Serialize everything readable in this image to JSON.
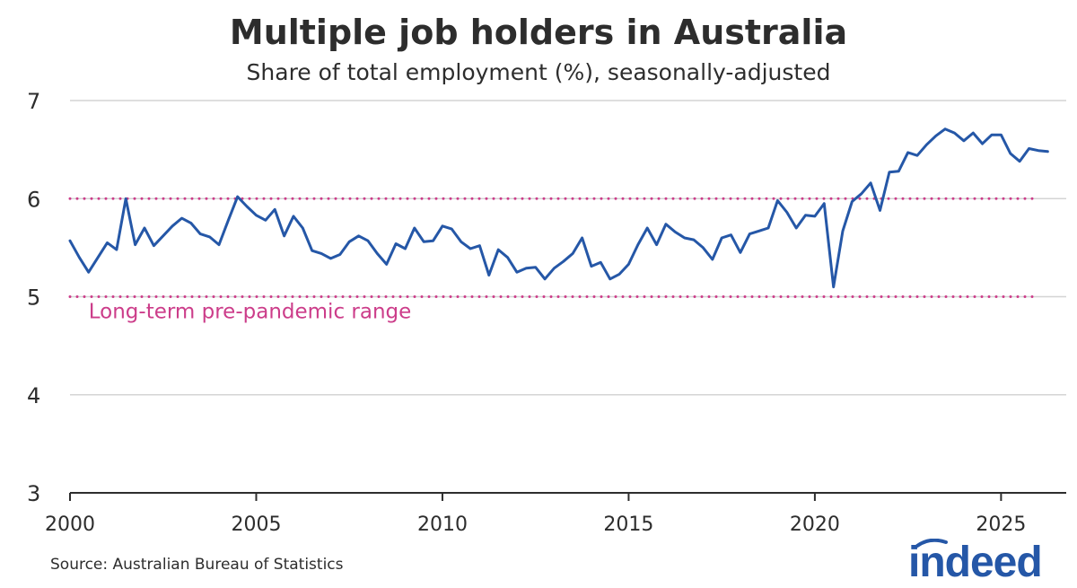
{
  "title": "Multiple job holders in Australia",
  "subtitle": "Share of total employment (%), seasonally-adjusted",
  "source": "Source: Australian Bureau of Statistics",
  "logo_text": "indeed",
  "colors": {
    "line": "#2557a7",
    "range": "#cc3d8a",
    "text": "#2d2d2d",
    "grid": "#d4d4d4",
    "axis": "#2d2d2d",
    "logo": "#2557a7"
  },
  "chart_data": {
    "type": "line",
    "xlabel": "",
    "ylabel": "",
    "xlim": [
      2000,
      2026.75
    ],
    "ylim": [
      3,
      7
    ],
    "x_ticks": [
      2000,
      2005,
      2010,
      2015,
      2020,
      2025
    ],
    "x_tick_labels": [
      "2000",
      "2005",
      "2010",
      "2015",
      "2020",
      "2025"
    ],
    "y_ticks": [
      3,
      4,
      5,
      6,
      7
    ],
    "y_tick_labels": [
      "3",
      "4",
      "5",
      "6",
      "7"
    ],
    "grid": "horizontal",
    "reference_lines": [
      {
        "y": 6,
        "style": "dotted"
      },
      {
        "y": 5,
        "style": "dotted"
      }
    ],
    "annotations": [
      {
        "text": "Long-term pre-pandemic range",
        "x": 2000.5,
        "y": 4.78
      }
    ],
    "series": [
      {
        "x": [
          2000.0,
          2000.25,
          2000.5,
          2000.75,
          2001.0,
          2001.25,
          2001.5,
          2001.75,
          2002.0,
          2002.25,
          2002.5,
          2002.75,
          2003.0,
          2003.25,
          2003.5,
          2003.75,
          2004.0,
          2004.25,
          2004.5,
          2004.75,
          2005.0,
          2005.25,
          2005.5,
          2005.75,
          2006.0,
          2006.25,
          2006.5,
          2006.75,
          2007.0,
          2007.25,
          2007.5,
          2007.75,
          2008.0,
          2008.25,
          2008.5,
          2008.75,
          2009.0,
          2009.25,
          2009.5,
          2009.75,
          2010.0,
          2010.25,
          2010.5,
          2010.75,
          2011.0,
          2011.25,
          2011.5,
          2011.75,
          2012.0,
          2012.25,
          2012.5,
          2012.75,
          2013.0,
          2013.25,
          2013.5,
          2013.75,
          2014.0,
          2014.25,
          2014.5,
          2014.75,
          2015.0,
          2015.25,
          2015.5,
          2015.75,
          2016.0,
          2016.25,
          2016.5,
          2016.75,
          2017.0,
          2017.25,
          2017.5,
          2017.75,
          2018.0,
          2018.25,
          2018.5,
          2018.75,
          2019.0,
          2019.25,
          2019.5,
          2019.75,
          2020.0,
          2020.25,
          2020.5,
          2020.75,
          2021.0,
          2021.25,
          2021.5,
          2021.75,
          2022.0,
          2022.25,
          2022.5,
          2022.75,
          2023.0,
          2023.25,
          2023.5,
          2023.75,
          2024.0,
          2024.25,
          2024.5,
          2024.75,
          2025.0,
          2025.25,
          2025.5,
          2025.75,
          2026.0,
          2026.25
        ],
        "values": [
          5.57,
          5.4,
          5.25,
          5.4,
          5.55,
          5.48,
          6.0,
          5.53,
          5.7,
          5.52,
          5.62,
          5.72,
          5.8,
          5.75,
          5.64,
          5.61,
          5.53,
          5.78,
          6.02,
          5.92,
          5.83,
          5.78,
          5.89,
          5.62,
          5.82,
          5.7,
          5.47,
          5.44,
          5.39,
          5.43,
          5.56,
          5.62,
          5.57,
          5.44,
          5.33,
          5.54,
          5.49,
          5.7,
          5.56,
          5.57,
          5.72,
          5.69,
          5.56,
          5.49,
          5.52,
          5.22,
          5.48,
          5.4,
          5.25,
          5.29,
          5.3,
          5.18,
          5.29,
          5.36,
          5.44,
          5.6,
          5.31,
          5.35,
          5.18,
          5.23,
          5.33,
          5.53,
          5.7,
          5.53,
          5.74,
          5.66,
          5.6,
          5.58,
          5.5,
          5.38,
          5.6,
          5.63,
          5.45,
          5.64,
          5.67,
          5.7,
          5.98,
          5.86,
          5.7,
          5.83,
          5.82,
          5.95,
          5.1,
          5.67,
          5.97,
          6.05,
          6.16,
          5.88,
          6.27,
          6.28,
          6.47,
          6.44,
          6.55,
          6.64,
          6.71,
          6.67,
          6.59,
          6.67,
          6.56,
          6.65,
          6.65,
          6.46,
          6.38,
          6.51,
          6.49,
          6.48
        ]
      }
    ]
  }
}
